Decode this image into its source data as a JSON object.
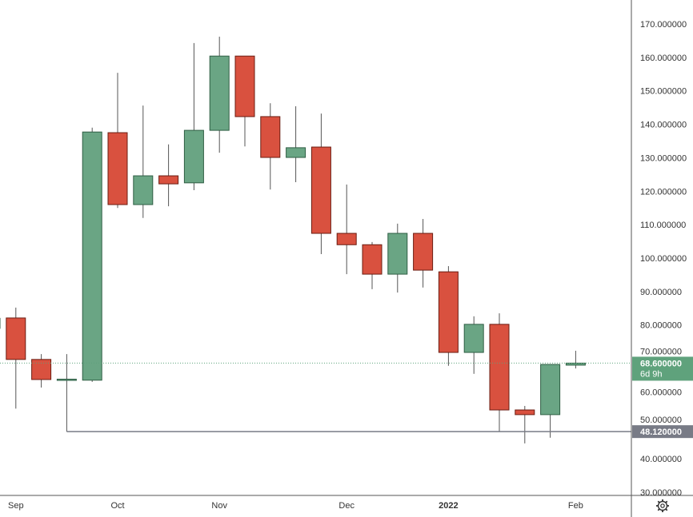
{
  "chart_data": {
    "type": "candlestick",
    "title": "",
    "ylim": [
      30,
      170
    ],
    "y_ticks": [
      "170.000000",
      "160.000000",
      "150.000000",
      "140.000000",
      "130.000000",
      "120.000000",
      "110.000000",
      "100.000000",
      "90.000000",
      "80.000000",
      "70.000000",
      "60.000000",
      "50.000000",
      "40.000000",
      "30.000000"
    ],
    "y_tick_values": [
      170,
      160,
      150,
      140,
      130,
      120,
      110,
      100,
      90,
      80,
      70,
      60,
      50,
      40,
      30
    ],
    "x_labels": [
      {
        "label": "Sep",
        "index": 0,
        "bold": false
      },
      {
        "label": "Oct",
        "index": 4,
        "bold": false
      },
      {
        "label": "Nov",
        "index": 8,
        "bold": false
      },
      {
        "label": "Dec",
        "index": 13,
        "bold": false
      },
      {
        "label": "2022",
        "index": 17,
        "bold": true
      },
      {
        "label": "Feb",
        "index": 22,
        "bold": false
      }
    ],
    "candles": [
      {
        "o": 79.0,
        "h": 82.5,
        "l": 78.0,
        "c": 82.0
      },
      {
        "o": 82.1,
        "h": 85.2,
        "l": 55.0,
        "c": 69.7
      },
      {
        "o": 69.7,
        "h": 71.3,
        "l": 61.3,
        "c": 63.7
      },
      {
        "o": 63.8,
        "h": 71.3,
        "l": 48.12,
        "c": 63.8
      },
      {
        "o": 63.5,
        "h": 139.0,
        "l": 63.0,
        "c": 137.7
      },
      {
        "o": 137.5,
        "h": 155.4,
        "l": 115.0,
        "c": 116.0
      },
      {
        "o": 116.0,
        "h": 145.6,
        "l": 112.0,
        "c": 124.6
      },
      {
        "o": 124.6,
        "h": 134.0,
        "l": 115.5,
        "c": 122.2
      },
      {
        "o": 122.5,
        "h": 164.3,
        "l": 120.3,
        "c": 138.2
      },
      {
        "o": 138.2,
        "h": 166.2,
        "l": 131.5,
        "c": 160.4
      },
      {
        "o": 160.4,
        "h": 160.4,
        "l": 133.4,
        "c": 142.3
      },
      {
        "o": 142.3,
        "h": 146.3,
        "l": 120.5,
        "c": 130.1
      },
      {
        "o": 130.1,
        "h": 145.4,
        "l": 122.7,
        "c": 133.0
      },
      {
        "o": 133.2,
        "h": 143.2,
        "l": 101.2,
        "c": 107.4
      },
      {
        "o": 107.4,
        "h": 122.0,
        "l": 95.2,
        "c": 104.0
      },
      {
        "o": 104.0,
        "h": 104.8,
        "l": 90.7,
        "c": 95.2
      },
      {
        "o": 95.2,
        "h": 110.3,
        "l": 89.7,
        "c": 107.4
      },
      {
        "o": 107.4,
        "h": 111.7,
        "l": 91.2,
        "c": 96.4
      },
      {
        "o": 95.9,
        "h": 97.6,
        "l": 67.8,
        "c": 71.8
      },
      {
        "o": 71.8,
        "h": 82.6,
        "l": 65.4,
        "c": 80.2
      },
      {
        "o": 80.2,
        "h": 83.5,
        "l": 48.1,
        "c": 54.6
      },
      {
        "o": 54.6,
        "h": 55.8,
        "l": 44.6,
        "c": 53.2
      },
      {
        "o": 53.2,
        "h": 68.2,
        "l": 46.3,
        "c": 68.2
      },
      {
        "o": 68.0,
        "h": 72.3,
        "l": 67.0,
        "c": 68.6
      }
    ],
    "current_price": {
      "value": 68.6,
      "label": "68.600000",
      "countdown": "6d 9h"
    },
    "horizontal_line": {
      "value": 48.12,
      "label": "48.120000",
      "start_index": 3
    },
    "colors": {
      "up": "#6aa584",
      "down": "#d9513f",
      "up_border": "#2f5e44",
      "down_border": "#6b1d12",
      "wick": "#555555",
      "price_tag": "#5fa27c",
      "line_tag": "#787b86"
    }
  }
}
